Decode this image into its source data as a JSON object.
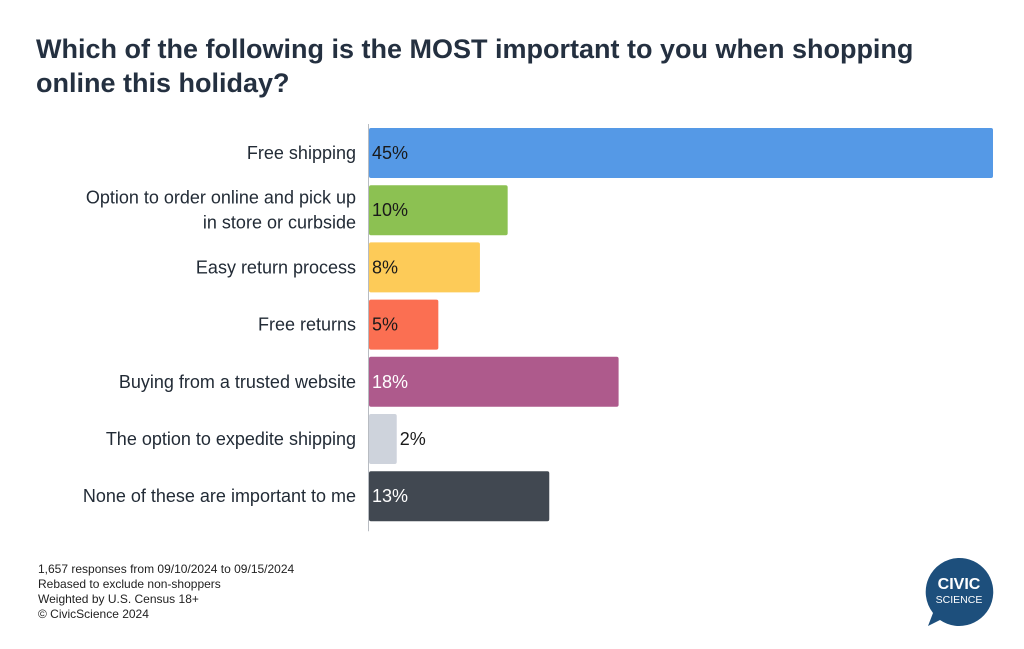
{
  "header": {
    "title": "Which of the following is the MOST important to you when shopping online this holiday?"
  },
  "chart_data": {
    "type": "bar",
    "orientation": "horizontal",
    "title": "Which of the following is the MOST important to you when shopping online this holiday?",
    "categories": [
      [
        "Free shipping"
      ],
      [
        "Option to order online and pick up",
        "in store or curbside"
      ],
      [
        "Easy return process"
      ],
      [
        "Free returns"
      ],
      [
        "Buying from a trusted website"
      ],
      [
        "The option to expedite shipping"
      ],
      [
        "None of these are important to me"
      ]
    ],
    "values": [
      45,
      10,
      8,
      5,
      18,
      2,
      13
    ],
    "value_labels": [
      "45%",
      "10%",
      "8%",
      "5%",
      "18%",
      "2%",
      "13%"
    ],
    "colors": [
      "#5599e6",
      "#8cc152",
      "#fdcb58",
      "#fb6f52",
      "#ae5a8c",
      "#ced3dc",
      "#414851"
    ],
    "label_colors": [
      "#1a1a1a",
      "#1a1a1a",
      "#1a1a1a",
      "#1a1a1a",
      "#ffffff",
      "#1a1a1a",
      "#ffffff"
    ],
    "xlim": [
      0,
      45
    ],
    "grid": false,
    "legend": "none"
  },
  "footnotes": {
    "line1": "1,657 responses from 09/10/2024 to 09/15/2024",
    "line2": "Rebased to exclude non-shoppers",
    "line3": "Weighted by U.S. Census 18+",
    "line4": "© CivicScience 2024"
  },
  "logo": {
    "line1": "CIVIC",
    "line2": "SCIENCE",
    "color": "#1d4f7c"
  }
}
